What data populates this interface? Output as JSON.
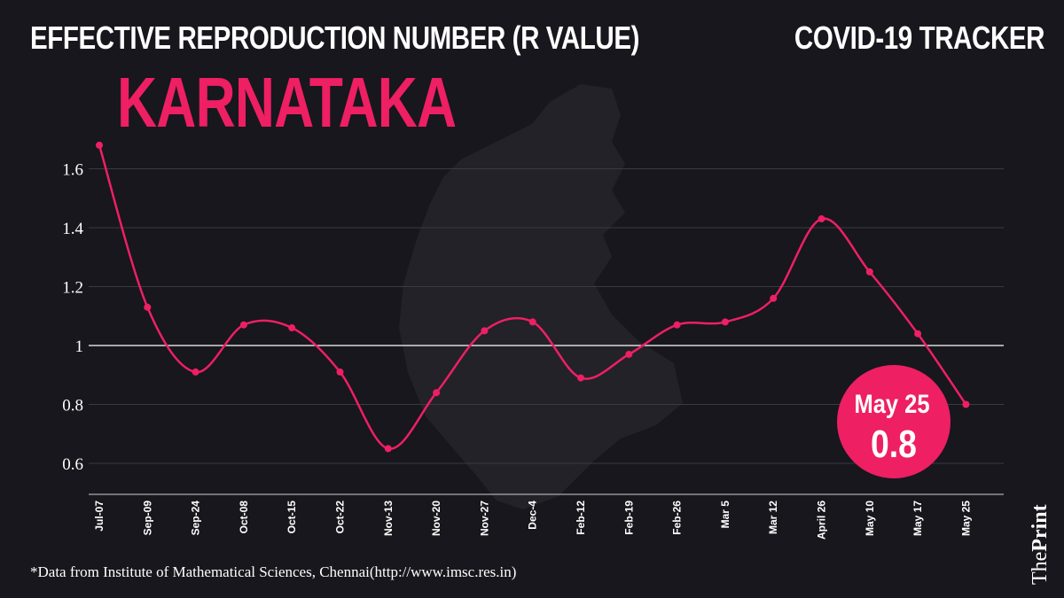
{
  "header": {
    "title": "EFFECTIVE REPRODUCTION NUMBER (R VALUE)",
    "tracker_label": "COVID-19 TRACKER",
    "region": "KARNATAKA"
  },
  "callout": {
    "date": "May 25",
    "value": "0.8"
  },
  "footer": {
    "source": "*Data from Institute of Mathematical Sciences, Chennai(http://www.imsc.res.in)",
    "brand_prefix": "The",
    "brand_name": "Print"
  },
  "colors": {
    "background": "#17171d",
    "accent": "#ee1f63",
    "grid": "#3a3a42",
    "reference_line": "#ffffff",
    "map_silhouette": "#222228"
  },
  "chart_data": {
    "type": "line",
    "title": "EFFECTIVE REPRODUCTION NUMBER (R VALUE)",
    "xlabel": "",
    "ylabel": "",
    "categories": [
      "Jul-07",
      "Sep-09",
      "Sep-24",
      "Oct-08",
      "Oct-15",
      "Oct-22",
      "Nov-13",
      "Nov-20",
      "Nov-27",
      "Dec-4",
      "Feb-12",
      "Feb-19",
      "Feb-26",
      "Mar 5",
      "Mar 12",
      "April 26",
      "May 10",
      "May 17",
      "May 25"
    ],
    "series": [
      {
        "name": "R value",
        "values": [
          1.68,
          1.13,
          0.91,
          1.07,
          1.06,
          0.91,
          0.65,
          0.84,
          1.05,
          1.08,
          0.89,
          0.97,
          1.07,
          1.08,
          1.16,
          1.43,
          1.25,
          1.04,
          0.8
        ]
      }
    ],
    "yticks": [
      0.6,
      0.8,
      1,
      1.2,
      1.4,
      1.6
    ],
    "ytick_labels": [
      "0.6",
      "0.8",
      "1",
      "1.2",
      "1.4",
      "1.6"
    ],
    "ylim": [
      0.5,
      1.7
    ],
    "reference_line": 1,
    "grid": true
  }
}
